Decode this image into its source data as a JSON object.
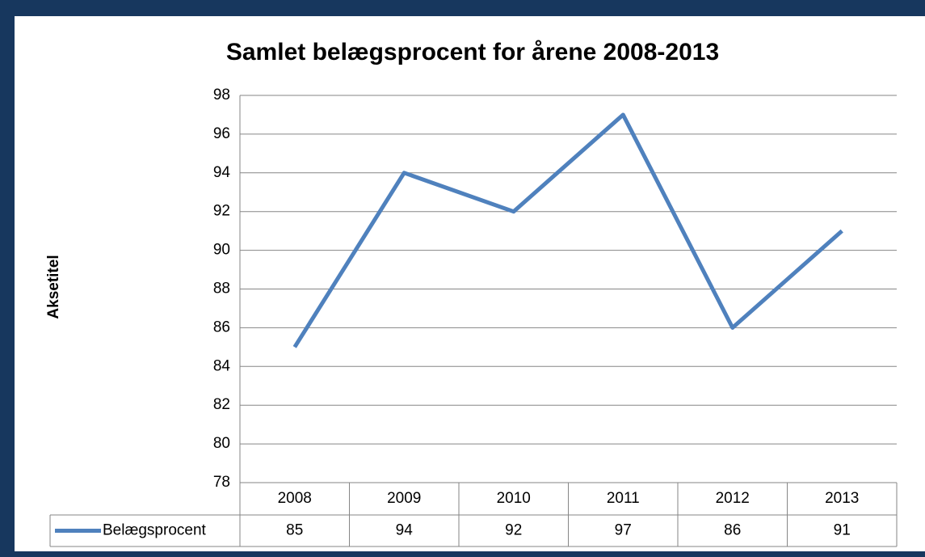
{
  "chart_data": {
    "type": "line",
    "title": "Samlet belægsprocent for årene 2008-2013",
    "y_axis_label": "Aksetitel",
    "categories": [
      "2008",
      "2009",
      "2010",
      "2011",
      "2012",
      "2013"
    ],
    "series": [
      {
        "name": "Belægsprocent",
        "color": "#4f81bd",
        "values": [
          85,
          94,
          92,
          97,
          86,
          91
        ]
      }
    ],
    "ylim": [
      78,
      98
    ],
    "yticks": [
      78,
      80,
      82,
      84,
      86,
      88,
      90,
      92,
      94,
      96,
      98
    ],
    "grid": true
  }
}
